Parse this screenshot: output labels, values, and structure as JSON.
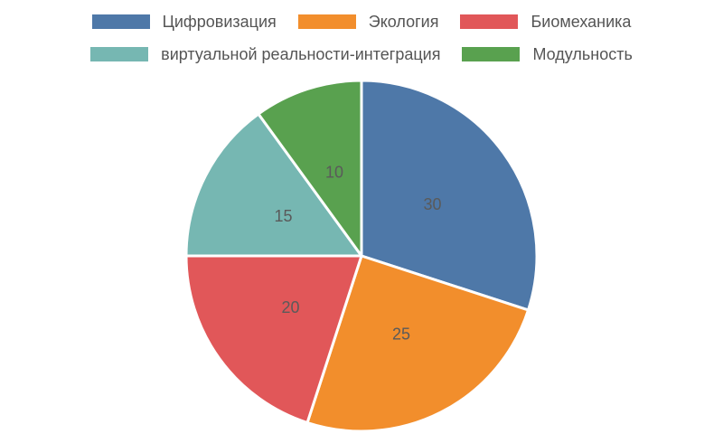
{
  "chart_data": {
    "type": "pie",
    "title": "",
    "categories": [
      "Цифровизация",
      "Экология",
      "Биомеханика",
      "виртуальной реальности-интеграция",
      "Модульность"
    ],
    "values": [
      30,
      25,
      20,
      15,
      10
    ],
    "colors": [
      "#4e78a8",
      "#f28e2c",
      "#e15759",
      "#76b7b2",
      "#59a14f"
    ],
    "data_labels": [
      "30",
      "25",
      "20",
      "15",
      "10"
    ],
    "legend_position": "top",
    "start_angle_deg": 0,
    "direction": "clockwise"
  }
}
